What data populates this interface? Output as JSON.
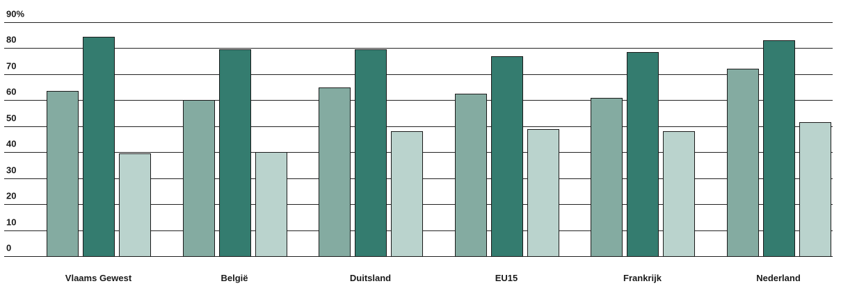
{
  "chart_data": {
    "type": "bar",
    "title": "",
    "xlabel": "",
    "ylabel": "",
    "ylim": [
      0,
      90
    ],
    "y_ticks": [
      "0",
      "10",
      "20",
      "30",
      "40",
      "50",
      "60",
      "70",
      "80",
      "90%"
    ],
    "grid": true,
    "legend": "none",
    "categories": [
      "Vlaams Gewest",
      "België",
      "Duitsland",
      "EU15",
      "Frankrijk",
      "Nederland"
    ],
    "series": [
      {
        "color": "#84aba1",
        "values": [
          63.5,
          60.0,
          65.0,
          62.5,
          61.0,
          72.0
        ]
      },
      {
        "color": "#347c6f",
        "values": [
          84.5,
          79.5,
          79.5,
          77.0,
          78.5,
          83.0
        ]
      },
      {
        "color": "#bad3cd",
        "values": [
          39.5,
          40.0,
          48.0,
          49.0,
          48.0,
          51.5
        ]
      }
    ]
  }
}
